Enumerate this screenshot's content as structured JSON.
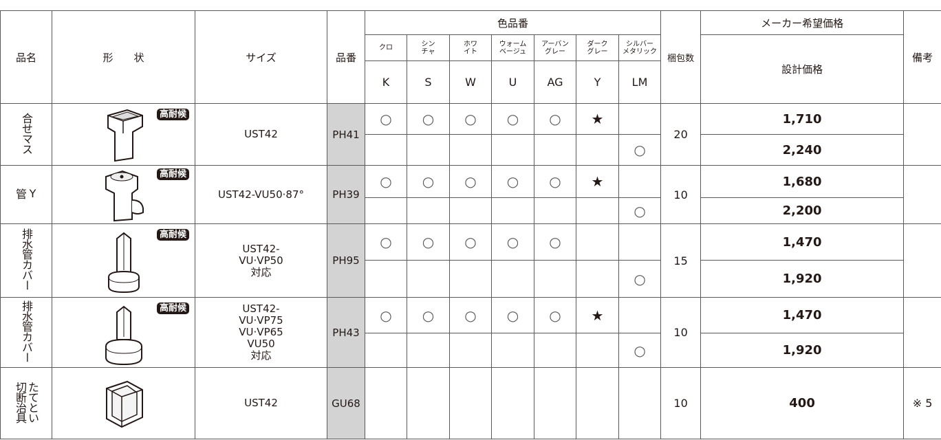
{
  "table": {
    "headers": {
      "product_name": "品名",
      "shape": "形　　状",
      "size": "サイズ",
      "code": "品番",
      "color_group": "色品番",
      "colors": [
        {
          "name": "クロ",
          "code": "K"
        },
        {
          "name": "シン\nチャ",
          "code": "S"
        },
        {
          "name": "ホワ\nイト",
          "code": "W"
        },
        {
          "name": "ウォーム\nベージュ",
          "code": "U"
        },
        {
          "name": "アーバン\nグレー",
          "code": "AG"
        },
        {
          "name": "ダーク\nグレー",
          "code": "Y"
        },
        {
          "name": "シルバー\nメタリック",
          "code": "LM"
        }
      ],
      "package": "梱包数",
      "price_group": "メーカー希望価格",
      "price": "設計価格",
      "note": "備考"
    },
    "rows": [
      {
        "name": "合せマス",
        "badge": "高耐候",
        "size": "UST42",
        "code": "PH41",
        "package": "20",
        "variants": [
          {
            "marks": [
              "○",
              "○",
              "○",
              "○",
              "○",
              "★",
              null
            ],
            "price": "1,710"
          },
          {
            "marks": [
              null,
              null,
              null,
              null,
              null,
              null,
              "○"
            ],
            "price": "2,240"
          }
        ]
      },
      {
        "name": "Y\n管",
        "badge": "高耐候",
        "size": "UST42-VU50·87°",
        "code": "PH39",
        "package": "10",
        "variants": [
          {
            "marks": [
              "○",
              "○",
              "○",
              "○",
              "○",
              "★",
              null
            ],
            "price": "1,680"
          },
          {
            "marks": [
              null,
              null,
              null,
              null,
              null,
              null,
              "○"
            ],
            "price": "2,200"
          }
        ]
      },
      {
        "name": "排水管カバー",
        "badge": "高耐候",
        "size": "UST42-\nVU·VP50\n対応",
        "code": "PH95",
        "package": "15",
        "variants": [
          {
            "marks": [
              "○",
              "○",
              "○",
              "○",
              "○",
              null,
              null
            ],
            "price": "1,470"
          },
          {
            "marks": [
              null,
              null,
              null,
              null,
              null,
              null,
              "○"
            ],
            "price": "1,920"
          }
        ]
      },
      {
        "name": "排水管カバー",
        "badge": "高耐候",
        "size": "UST42-\nVU·VP75\nVU·VP65\nVU50\n対応",
        "code": "PH43",
        "package": "10",
        "variants": [
          {
            "marks": [
              "○",
              "○",
              "○",
              "○",
              "○",
              "★",
              null
            ],
            "price": "1,470"
          },
          {
            "marks": [
              null,
              null,
              null,
              null,
              null,
              null,
              "○"
            ],
            "price": "1,920"
          }
        ]
      },
      {
        "name": "たてとい\n切断治具",
        "size": "UST42",
        "code": "GU68",
        "package": "10",
        "note": "※ 5",
        "variants": [
          {
            "price": "400"
          }
        ]
      }
    ]
  }
}
